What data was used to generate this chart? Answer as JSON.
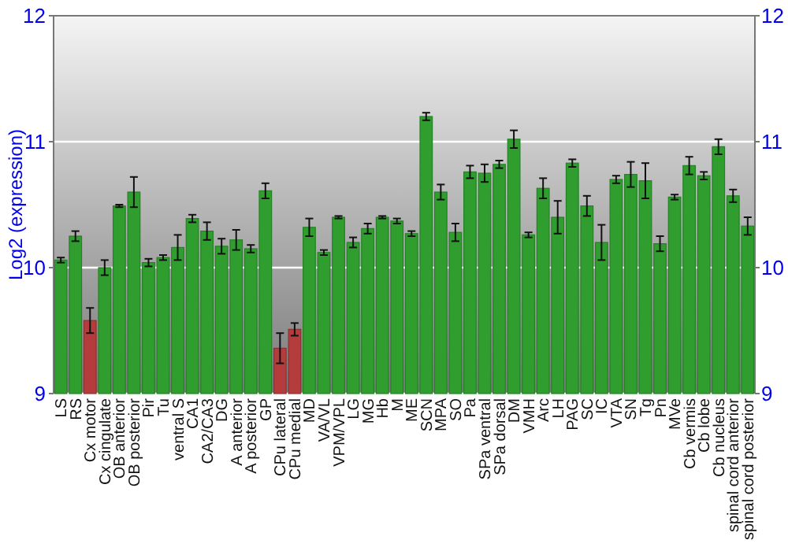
{
  "chart_data": {
    "type": "bar",
    "ylabel": "Log2 (expression)",
    "categories": [
      "LS",
      "RS",
      "Cx motor",
      "Cx cingulate",
      "OB anterior",
      "OB posterior",
      "Pir",
      "Tu",
      "ventral S",
      "CA1",
      "CA2/CA3",
      "DG",
      "A anterior",
      "A posterior",
      "GP",
      "CPu lateral",
      "CPu medial",
      "MD",
      "VA/VL",
      "VPM/VPL",
      "LG",
      "MG",
      "Hb",
      "M",
      "ME",
      "SCN",
      "MPA",
      "SO",
      "Pa",
      "SPa ventral",
      "SPa dorsal",
      "DM",
      "VMH",
      "Arc",
      "LH",
      "PAG",
      "SC",
      "IC",
      "VTA",
      "SN",
      "Tg",
      "Pn",
      "MVe",
      "Cb vermis",
      "Cb lobe",
      "Cb nucleus",
      "spinal cord anterior",
      "spinal cord posterior"
    ],
    "values": [
      10.06,
      10.25,
      9.58,
      10.0,
      10.49,
      10.6,
      10.04,
      10.08,
      10.16,
      10.39,
      10.29,
      10.17,
      10.22,
      10.15,
      10.61,
      9.36,
      9.51,
      10.32,
      10.12,
      10.4,
      10.2,
      10.31,
      10.4,
      10.37,
      10.27,
      11.2,
      10.6,
      10.28,
      10.76,
      10.75,
      10.82,
      11.02,
      10.26,
      10.63,
      10.4,
      10.83,
      10.49,
      10.2,
      10.7,
      10.74,
      10.69,
      10.19,
      10.56,
      10.81,
      10.73,
      10.96,
      10.57,
      10.33
    ],
    "errors": [
      0.02,
      0.04,
      0.1,
      0.06,
      0.01,
      0.12,
      0.03,
      0.02,
      0.1,
      0.03,
      0.07,
      0.06,
      0.08,
      0.03,
      0.06,
      0.12,
      0.05,
      0.07,
      0.02,
      0.01,
      0.04,
      0.04,
      0.01,
      0.02,
      0.02,
      0.03,
      0.06,
      0.07,
      0.05,
      0.07,
      0.03,
      0.07,
      0.02,
      0.08,
      0.13,
      0.03,
      0.08,
      0.14,
      0.03,
      0.1,
      0.14,
      0.06,
      0.02,
      0.07,
      0.03,
      0.06,
      0.05,
      0.07
    ],
    "colors": [
      "#2f9e2f",
      "#2f9e2f",
      "#b43c3c",
      "#2f9e2f",
      "#2f9e2f",
      "#2f9e2f",
      "#2f9e2f",
      "#2f9e2f",
      "#2f9e2f",
      "#2f9e2f",
      "#2f9e2f",
      "#2f9e2f",
      "#2f9e2f",
      "#2f9e2f",
      "#2f9e2f",
      "#b43c3c",
      "#b43c3c",
      "#2f9e2f",
      "#2f9e2f",
      "#2f9e2f",
      "#2f9e2f",
      "#2f9e2f",
      "#2f9e2f",
      "#2f9e2f",
      "#2f9e2f",
      "#2f9e2f",
      "#2f9e2f",
      "#2f9e2f",
      "#2f9e2f",
      "#2f9e2f",
      "#2f9e2f",
      "#2f9e2f",
      "#2f9e2f",
      "#2f9e2f",
      "#2f9e2f",
      "#2f9e2f",
      "#2f9e2f",
      "#2f9e2f",
      "#2f9e2f",
      "#2f9e2f",
      "#2f9e2f",
      "#2f9e2f",
      "#2f9e2f",
      "#2f9e2f",
      "#2f9e2f",
      "#2f9e2f",
      "#2f9e2f",
      "#2f9e2f"
    ],
    "ylim": [
      9,
      12
    ],
    "yticks": [
      9,
      10,
      11,
      12
    ],
    "y2lim": [
      9,
      12
    ],
    "y2ticks": [
      9,
      10,
      11,
      12
    ],
    "grid": "y"
  }
}
